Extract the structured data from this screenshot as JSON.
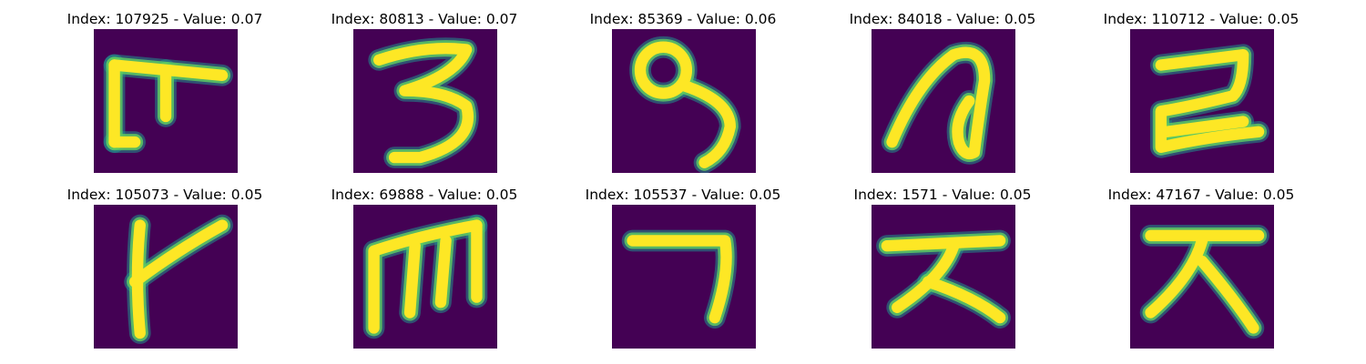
{
  "colors": {
    "background": "#440154",
    "ink_core": "#fde725",
    "ink_edge": "#21918c",
    "ink_mid": "#5ec962"
  },
  "panels": [
    {
      "index": "107925",
      "value": "0.07",
      "title": "Index: 107925 - Value: 0.07",
      "glyph": "ᄑ"
    },
    {
      "index": "80813",
      "value": "0.07",
      "title": "Index: 80813 - Value: 0.07",
      "glyph": "3"
    },
    {
      "index": "85369",
      "value": "0.06",
      "title": "Index: 85369 - Value: 0.06",
      "glyph": "9"
    },
    {
      "index": "84018",
      "value": "0.05",
      "title": "Index: 84018 - Value: 0.05",
      "glyph": "ᄋ"
    },
    {
      "index": "110712",
      "value": "0.05",
      "title": "Index: 110712 - Value: 0.05",
      "glyph": "ᄅ"
    },
    {
      "index": "105073",
      "value": "0.05",
      "title": "Index: 105073 - Value: 0.05",
      "glyph": "ᅡ"
    },
    {
      "index": "69888",
      "value": "0.05",
      "title": "Index: 69888 - Value: 0.05",
      "glyph": "m"
    },
    {
      "index": "105537",
      "value": "0.05",
      "title": "Index: 105537 - Value: 0.05",
      "glyph": "ㄱ"
    },
    {
      "index": "1571",
      "value": "0.05",
      "title": "Index: 1571 - Value: 0.05",
      "glyph": "ㅈ"
    },
    {
      "index": "47167",
      "value": "0.05",
      "title": "Index: 47167 - Value: 0.05",
      "glyph": "ㅈ"
    }
  ]
}
